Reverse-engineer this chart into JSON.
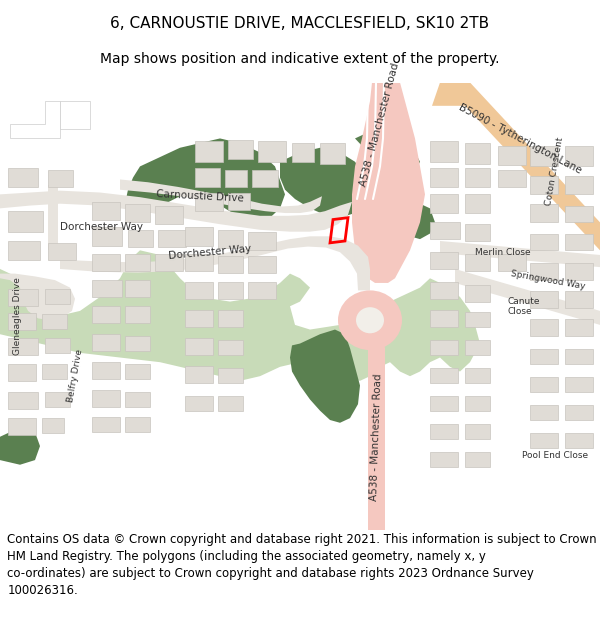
{
  "title_line1": "6, CARNOUSTIE DRIVE, MACCLESFIELD, SK10 2TB",
  "title_line2": "Map shows position and indicative extent of the property.",
  "footer_text": "Contains OS data © Crown copyright and database right 2021. This information is subject to Crown copyright and database rights 2023 and is reproduced with the permission of\nHM Land Registry. The polygons (including the associated geometry, namely x, y\nco-ordinates) are subject to Crown copyright and database rights 2023 Ordnance Survey\n100026316.",
  "title_fontsize": 11,
  "subtitle_fontsize": 10,
  "footer_fontsize": 8.5,
  "bg_color": "#ffffff",
  "title_color": "#000000",
  "footer_color": "#000000",
  "fig_width": 6.0,
  "fig_height": 6.25,
  "dpi": 100,
  "map_facecolor": "#f2efe9",
  "light_green": "#c8dbb8",
  "dark_green": "#5a8050",
  "road_pink": "#f5c8c0",
  "road_peach": "#f0c898",
  "building_fill": "#e0dcd6",
  "building_edge": "#c8c4be",
  "road_white": "#ffffff",
  "road_gray": "#e8e4de"
}
